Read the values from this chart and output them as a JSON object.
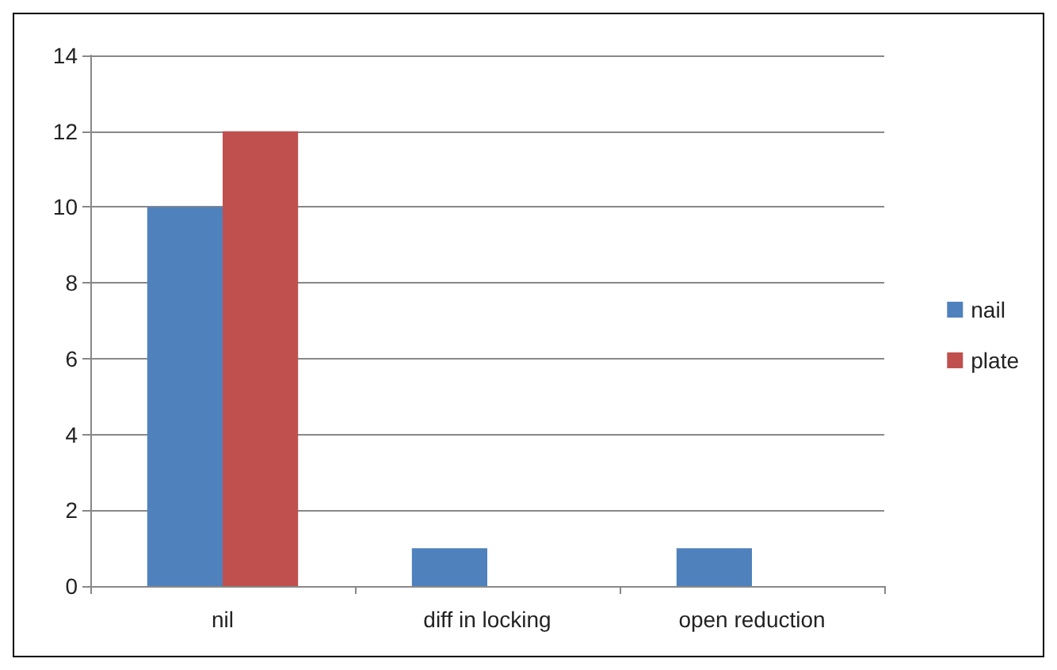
{
  "chart_data": {
    "type": "bar",
    "categories": [
      "nil",
      "diff in locking",
      "open reduction"
    ],
    "series": [
      {
        "name": "nail",
        "color": "#4f81bd",
        "values": [
          10,
          1,
          1
        ]
      },
      {
        "name": "plate",
        "color": "#c0504d",
        "values": [
          12,
          0,
          0
        ]
      }
    ],
    "ylim": [
      0,
      14
    ],
    "yticks": [
      0,
      2,
      4,
      6,
      8,
      10,
      12,
      14
    ],
    "grid": "y",
    "legend": "right"
  }
}
